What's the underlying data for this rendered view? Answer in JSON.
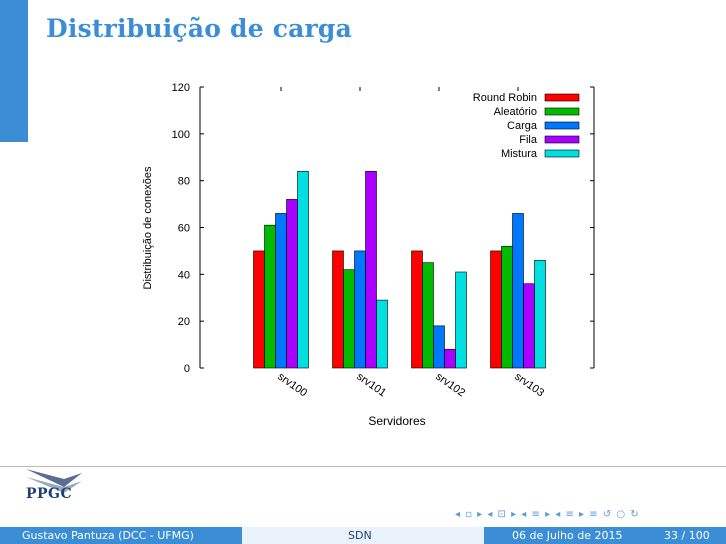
{
  "slide": {
    "title": "Distribuição de carga",
    "logo_text": "PPGC",
    "nav_symbols": "◂ ▫ ▸ ◂ ⊡ ▸ ◂ ≡ ▸ ◂ ≡ ▸   ≡   ↺ ○ ↻",
    "footer": {
      "author": "Gustavo Pantuza (DCC - UFMG)",
      "short_title": "SDN",
      "date": "06 de Julho de 2015",
      "page": "33 / 100"
    }
  },
  "chart_data": {
    "type": "bar",
    "title": "",
    "xlabel": "Servidores",
    "ylabel": "Distribuição de conexões",
    "ylim": [
      0,
      120
    ],
    "yticks": [
      0,
      20,
      40,
      60,
      80,
      100,
      120
    ],
    "grid": false,
    "legend_position": "top-right",
    "categories": [
      "srv100",
      "srv101",
      "srv102",
      "srv103"
    ],
    "series": [
      {
        "name": "Round Robin",
        "color": "#ff0000",
        "values": [
          50,
          50,
          50,
          50
        ]
      },
      {
        "name": "Aleatório",
        "color": "#00bb00",
        "values": [
          61,
          42,
          45,
          52
        ]
      },
      {
        "name": "Carga",
        "color": "#0077ff",
        "values": [
          66,
          50,
          18,
          66
        ]
      },
      {
        "name": "Fila",
        "color": "#aa00ff",
        "values": [
          72,
          84,
          8,
          36
        ]
      },
      {
        "name": "Mistura",
        "color": "#00e0e0",
        "values": [
          84,
          29,
          41,
          46
        ]
      }
    ]
  }
}
